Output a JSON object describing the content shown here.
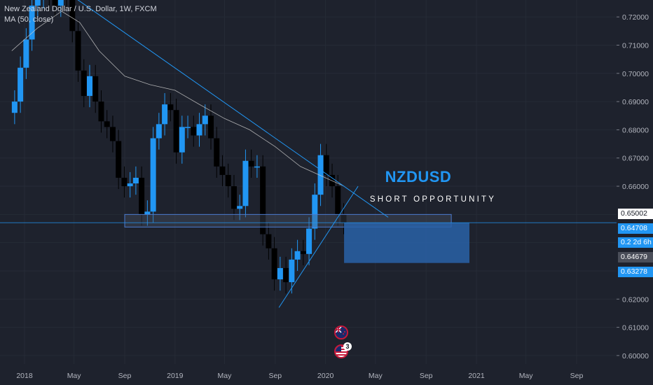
{
  "legend": {
    "symbol": "New Zealand Dollar / U.S. Dollar, 1W, FXCM",
    "indicator": "MA (50, close)"
  },
  "annotation": {
    "title": "NZDUSD",
    "subtitle": "SHORT OPPORTUNITY"
  },
  "price_scale": {
    "ticks": [
      "0.72000",
      "0.71000",
      "0.70000",
      "0.69000",
      "0.68000",
      "0.67000",
      "0.66000",
      "0.62000",
      "0.61000",
      "0.60000"
    ],
    "labels": {
      "active": "0.65002",
      "last": "0.64708",
      "timer": "0.2 2d 6h",
      "gray": "0.64679",
      "target": "0.63278"
    }
  },
  "time_axis": [
    "2018",
    "May",
    "Sep",
    "2019",
    "May",
    "Sep",
    "2020",
    "May",
    "Sep",
    "2021",
    "May",
    "Sep"
  ],
  "events": {
    "us_count": "3",
    "nz_icon": "nz-flag-icon",
    "us_icon": "us-flag-icon"
  },
  "colors": {
    "background": "#1e222d",
    "up": "#2196f3",
    "down": "#000000",
    "accent": "#2196f3",
    "zone": "#2962a8"
  },
  "chart_data": {
    "type": "candlestick",
    "symbol": "NZDUSD",
    "timeframe": "1W",
    "ylim": [
      0.597,
      0.726
    ],
    "x_range": [
      "2017-12",
      "2021-12"
    ],
    "moving_average": [
      [
        "2017-12-01",
        0.708
      ],
      [
        "2018-02-01",
        0.716
      ],
      [
        "2018-04-01",
        0.722
      ],
      [
        "2018-05-15",
        0.718
      ],
      [
        "2018-07-01",
        0.708
      ],
      [
        "2018-09-01",
        0.699
      ],
      [
        "2018-11-01",
        0.696
      ],
      [
        "2019-01-01",
        0.694
      ],
      [
        "2019-03-01",
        0.689
      ],
      [
        "2019-05-01",
        0.684
      ],
      [
        "2019-07-01",
        0.68
      ],
      [
        "2019-09-01",
        0.674
      ],
      [
        "2019-11-01",
        0.667
      ],
      [
        "2020-01-01",
        0.663
      ],
      [
        "2020-02-15",
        0.66
      ]
    ],
    "candles_close": [
      [
        "2017-12-08",
        0.69
      ],
      [
        "2017-12-22",
        0.702
      ],
      [
        "2018-01-05",
        0.712
      ],
      [
        "2018-01-19",
        0.724
      ],
      [
        "2018-02-02",
        0.727
      ],
      [
        "2018-02-16",
        0.735
      ],
      [
        "2018-03-02",
        0.726
      ],
      [
        "2018-03-16",
        0.724
      ],
      [
        "2018-03-30",
        0.729
      ],
      [
        "2018-04-13",
        0.727
      ],
      [
        "2018-04-27",
        0.715
      ],
      [
        "2018-05-11",
        0.701
      ],
      [
        "2018-05-25",
        0.692
      ],
      [
        "2018-06-08",
        0.699
      ],
      [
        "2018-06-22",
        0.69
      ],
      [
        "2018-07-06",
        0.683
      ],
      [
        "2018-07-20",
        0.681
      ],
      [
        "2018-08-03",
        0.676
      ],
      [
        "2018-08-17",
        0.663
      ],
      [
        "2018-08-31",
        0.66
      ],
      [
        "2018-09-14",
        0.661
      ],
      [
        "2018-09-28",
        0.663
      ],
      [
        "2018-10-12",
        0.65
      ],
      [
        "2018-10-26",
        0.651
      ],
      [
        "2018-11-09",
        0.677
      ],
      [
        "2018-11-23",
        0.682
      ],
      [
        "2018-12-07",
        0.689
      ],
      [
        "2018-12-21",
        0.687
      ],
      [
        "2019-01-04",
        0.672
      ],
      [
        "2019-01-18",
        0.681
      ],
      [
        "2019-02-01",
        0.681
      ],
      [
        "2019-02-15",
        0.678
      ],
      [
        "2019-03-01",
        0.682
      ],
      [
        "2019-03-15",
        0.685
      ],
      [
        "2019-03-29",
        0.677
      ],
      [
        "2019-04-12",
        0.667
      ],
      [
        "2019-04-26",
        0.664
      ],
      [
        "2019-05-10",
        0.66
      ],
      [
        "2019-05-24",
        0.652
      ],
      [
        "2019-06-07",
        0.653
      ],
      [
        "2019-06-21",
        0.669
      ],
      [
        "2019-07-05",
        0.667
      ],
      [
        "2019-07-19",
        0.667
      ],
      [
        "2019-08-02",
        0.643
      ],
      [
        "2019-08-16",
        0.638
      ],
      [
        "2019-08-30",
        0.627
      ],
      [
        "2019-09-13",
        0.631
      ],
      [
        "2019-09-27",
        0.626
      ],
      [
        "2019-10-11",
        0.634
      ],
      [
        "2019-10-25",
        0.637
      ],
      [
        "2019-11-08",
        0.636
      ],
      [
        "2019-11-22",
        0.645
      ],
      [
        "2019-12-06",
        0.657
      ],
      [
        "2019-12-20",
        0.671
      ],
      [
        "2020-01-03",
        0.664
      ],
      [
        "2020-01-17",
        0.66
      ],
      [
        "2020-01-31",
        0.65
      ],
      [
        "2020-02-14",
        0.647
      ]
    ],
    "trendlines": [
      {
        "name": "descending-resistance",
        "from": [
          "2018-05-01",
          0.727
        ],
        "to": [
          "2020-06-01",
          0.649
        ]
      },
      {
        "name": "ascending-support",
        "from": [
          "2019-09-10",
          0.617
        ],
        "to": [
          "2020-03-20",
          0.66
        ]
      }
    ],
    "zones": [
      {
        "name": "support-resistance-zone",
        "from_date": "2018-09-01",
        "to_date": "2020-11-01",
        "top": 0.65,
        "bottom": 0.648
      },
      {
        "name": "short-target-zone",
        "from_date": "2020-02-15",
        "to_date": "2020-12-15",
        "top": 0.6471,
        "bottom": 0.6328
      }
    ],
    "horizontal_line": 0.64708
  }
}
